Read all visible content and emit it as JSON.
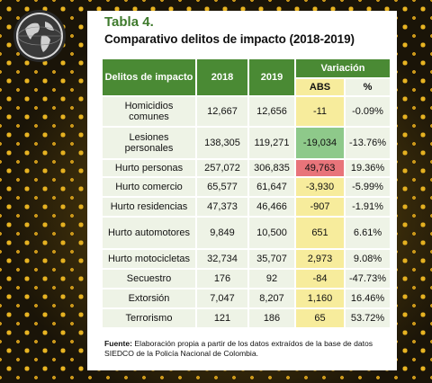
{
  "title": {
    "label": "Tabla 4.",
    "subtitle": "Comparativo delitos de impacto (2018-2019)"
  },
  "table": {
    "header": {
      "crime": "Delitos de impacto",
      "y2018": "2018",
      "y2019": "2019",
      "variation": "Variación",
      "abs": "ABS",
      "pct": "%"
    },
    "rows": [
      {
        "crime": "Homicidios comunes",
        "y2018": "12,667",
        "y2019": "12,656",
        "abs": "-11",
        "pct": "-0.09%",
        "highlight": ""
      },
      {
        "crime": "Lesiones personales",
        "y2018": "138,305",
        "y2019": "119,271",
        "abs": "-19,034",
        "pct": "-13.76%",
        "highlight": "green"
      },
      {
        "crime": "Hurto personas",
        "y2018": "257,072",
        "y2019": "306,835",
        "abs": "49,763",
        "pct": "19.36%",
        "highlight": "red"
      },
      {
        "crime": "Hurto comercio",
        "y2018": "65,577",
        "y2019": "61,647",
        "abs": "-3,930",
        "pct": "-5.99%",
        "highlight": ""
      },
      {
        "crime": "Hurto residencias",
        "y2018": "47,373",
        "y2019": "46,466",
        "abs": "-907",
        "pct": "-1.91%",
        "highlight": ""
      },
      {
        "crime": "Hurto automotores",
        "y2018": "9,849",
        "y2019": "10,500",
        "abs": "651",
        "pct": "6.61%",
        "highlight": ""
      },
      {
        "crime": "Hurto motocicletas",
        "y2018": "32,734",
        "y2019": "35,707",
        "abs": "2,973",
        "pct": "9.08%",
        "highlight": ""
      },
      {
        "crime": "Secuestro",
        "y2018": "176",
        "y2019": "92",
        "abs": "-84",
        "pct": "-47.73%",
        "highlight": ""
      },
      {
        "crime": "Extorsión",
        "y2018": "7,047",
        "y2019": "8,207",
        "abs": "1,160",
        "pct": "16.46%",
        "highlight": ""
      },
      {
        "crime": "Terrorismo",
        "y2018": "121",
        "y2019": "186",
        "abs": "65",
        "pct": "53.72%",
        "highlight": ""
      }
    ]
  },
  "footer": {
    "label": "Fuente:",
    "text": "Elaboración propia a partir de los datos extraídos de la base de datos SIEDCO de la Policía Nacional de Colombia."
  },
  "colors": {
    "header_green": "#4a8a34",
    "title_green": "#3e7a2c",
    "cell_bg": "#eef3e6",
    "abs_yellow": "#f7ec9c",
    "abs_green": "#8ec98a",
    "abs_red": "#e8747a"
  },
  "icons": {
    "logo": "globe-icon"
  }
}
